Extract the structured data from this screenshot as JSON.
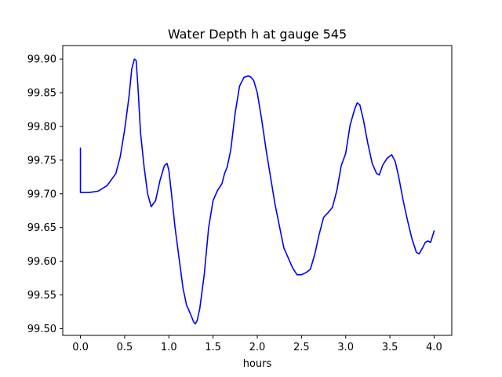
{
  "chart_data": {
    "type": "line",
    "title": "Water Depth h at gauge 545",
    "xlabel": "hours",
    "ylabel": "",
    "xlim": [
      -0.2,
      4.2
    ],
    "ylim": [
      99.49,
      99.92
    ],
    "xticks": [
      0.0,
      0.5,
      1.0,
      1.5,
      2.0,
      2.5,
      3.0,
      3.5,
      4.0
    ],
    "xtick_labels": [
      "0.0",
      "0.5",
      "1.0",
      "1.5",
      "2.0",
      "2.5",
      "3.0",
      "3.5",
      "4.0"
    ],
    "yticks": [
      99.5,
      99.55,
      99.6,
      99.65,
      99.7,
      99.75,
      99.8,
      99.85,
      99.9
    ],
    "ytick_labels": [
      "99.50",
      "99.55",
      "99.60",
      "99.65",
      "99.70",
      "99.75",
      "99.80",
      "99.85",
      "99.90"
    ],
    "grid": false,
    "legend": "none",
    "series": [
      {
        "color": "#0000ff",
        "x": [
          0.0,
          0.0,
          0.05,
          0.1,
          0.2,
          0.3,
          0.4,
          0.45,
          0.5,
          0.55,
          0.58,
          0.61,
          0.63,
          0.65,
          0.68,
          0.72,
          0.76,
          0.8,
          0.85,
          0.9,
          0.95,
          0.98,
          1.0,
          1.03,
          1.07,
          1.12,
          1.16,
          1.2,
          1.25,
          1.28,
          1.3,
          1.32,
          1.35,
          1.4,
          1.45,
          1.5,
          1.55,
          1.6,
          1.63,
          1.66,
          1.7,
          1.75,
          1.8,
          1.85,
          1.9,
          1.93,
          1.96,
          2.0,
          2.05,
          2.1,
          2.15,
          2.2,
          2.3,
          2.4,
          2.45,
          2.5,
          2.55,
          2.6,
          2.65,
          2.7,
          2.75,
          2.8,
          2.85,
          2.9,
          2.95,
          3.0,
          3.05,
          3.1,
          3.13,
          3.16,
          3.2,
          3.25,
          3.3,
          3.35,
          3.38,
          3.42,
          3.47,
          3.52,
          3.56,
          3.6,
          3.65,
          3.7,
          3.75,
          3.8,
          3.83,
          3.87,
          3.9,
          3.93,
          3.96,
          4.0
        ],
        "y": [
          99.768,
          99.702,
          99.702,
          99.702,
          99.704,
          99.712,
          99.73,
          99.755,
          99.795,
          99.845,
          99.885,
          99.9,
          99.898,
          99.86,
          99.79,
          99.74,
          99.7,
          99.681,
          99.69,
          99.72,
          99.742,
          99.745,
          99.735,
          99.7,
          99.65,
          99.6,
          99.56,
          99.535,
          99.52,
          99.51,
          99.507,
          99.512,
          99.53,
          99.58,
          99.65,
          99.69,
          99.705,
          99.715,
          99.73,
          99.74,
          99.765,
          99.82,
          99.86,
          99.873,
          99.875,
          99.873,
          99.868,
          99.85,
          99.81,
          99.765,
          99.725,
          99.685,
          99.62,
          99.59,
          99.58,
          99.58,
          99.583,
          99.588,
          99.61,
          99.64,
          99.665,
          99.672,
          99.68,
          99.705,
          99.742,
          99.76,
          99.802,
          99.825,
          99.835,
          99.832,
          99.81,
          99.775,
          99.745,
          99.73,
          99.728,
          99.743,
          99.753,
          99.758,
          99.748,
          99.725,
          99.69,
          99.66,
          99.633,
          99.613,
          99.611,
          99.62,
          99.628,
          99.63,
          99.628,
          99.645
        ]
      }
    ]
  }
}
